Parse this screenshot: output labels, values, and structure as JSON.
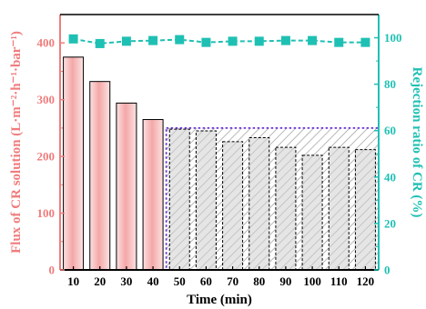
{
  "chart_data": {
    "type": "bar",
    "xlabel": "Time (min)",
    "ylabel": "Flux of CR solution (L·m⁻²·h⁻¹·bar⁻¹)",
    "y2label": "Rejection ratio of CR (%)",
    "categories": [
      "10",
      "20",
      "30",
      "40",
      "50",
      "60",
      "70",
      "80",
      "90",
      "100",
      "110",
      "120"
    ],
    "ylim": [
      0,
      450
    ],
    "y2lim": [
      0,
      110
    ],
    "yticks": [
      0,
      100,
      200,
      300,
      400
    ],
    "y2ticks": [
      0,
      20,
      40,
      60,
      80,
      100
    ],
    "series": [
      {
        "axis": "left",
        "kind": "bar",
        "values": [
          375,
          332,
          294,
          265,
          248,
          245,
          226,
          233,
          216,
          202,
          216,
          212
        ]
      },
      {
        "axis": "right",
        "kind": "line",
        "values": [
          99.5,
          97.5,
          98.5,
          98.8,
          99.2,
          98.0,
          98.5,
          98.5,
          98.8,
          98.8,
          98.0,
          98.0
        ]
      }
    ],
    "shaded_region": {
      "from_category": "50",
      "to_category": "120",
      "top_value": 250
    },
    "colors": {
      "left_axis": "#f07c7c",
      "right_axis": "#1fc0b4",
      "bar_fill": "#f7b9b9",
      "bar_shaded_fill": "#d0d0d0",
      "region_border": "#6b35d6"
    }
  }
}
